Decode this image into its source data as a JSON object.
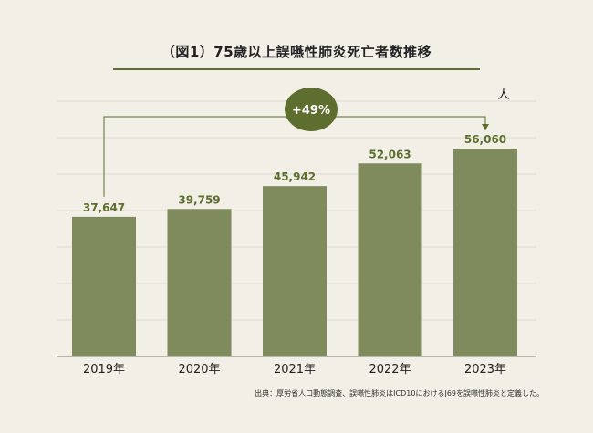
{
  "chart_data": {
    "type": "bar",
    "title": "（図1）75歳以上誤嚥性肺炎死亡者数推移",
    "unit": "人",
    "categories": [
      "2019年",
      "2020年",
      "2021年",
      "2022年",
      "2023年"
    ],
    "values": [
      37647,
      39759,
      45942,
      52063,
      56060
    ],
    "value_labels": [
      "37,647",
      "39,759",
      "45,942",
      "52,063",
      "56,060"
    ],
    "ylim": [
      0,
      60000
    ],
    "grid": true,
    "annotation": {
      "label": "+49%",
      "from_category": "2019年",
      "to_category": "2023年"
    },
    "colors": {
      "bar": "#7f8a5d",
      "accent": "#5d6e2e",
      "grid": "#e0ddd2",
      "background": "#f1efe6"
    }
  },
  "source_note": "出典：厚労省人口動態調査、誤嚥性肺炎はICD10におけるJ69を誤嚥性肺炎と定義した。"
}
